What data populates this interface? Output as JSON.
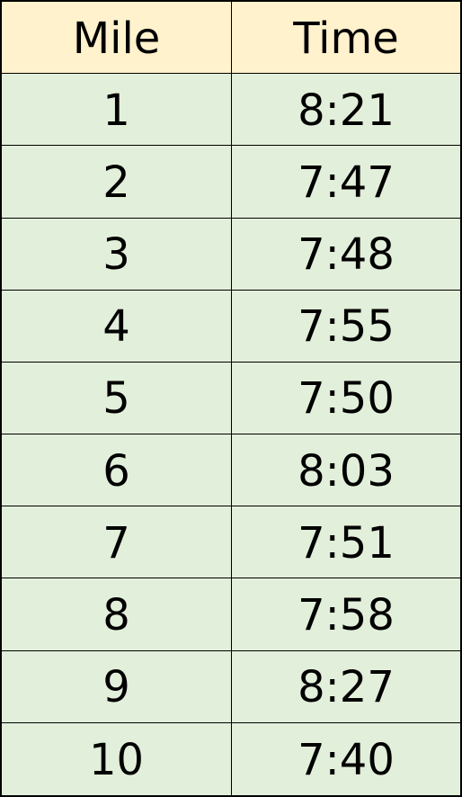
{
  "colors": {
    "header_bg": "#FFF2CC",
    "body_bg": "#E2EFDA",
    "border": "#000000",
    "text": "#000000"
  },
  "chart_data": {
    "type": "table",
    "columns": [
      "Mile",
      "Time"
    ],
    "rows": [
      [
        "1",
        "8:21"
      ],
      [
        "2",
        "7:47"
      ],
      [
        "3",
        "7:48"
      ],
      [
        "4",
        "7:55"
      ],
      [
        "5",
        "7:50"
      ],
      [
        "6",
        "8:03"
      ],
      [
        "7",
        "7:51"
      ],
      [
        "8",
        "7:58"
      ],
      [
        "9",
        "8:27"
      ],
      [
        "10",
        "7:40"
      ]
    ]
  }
}
